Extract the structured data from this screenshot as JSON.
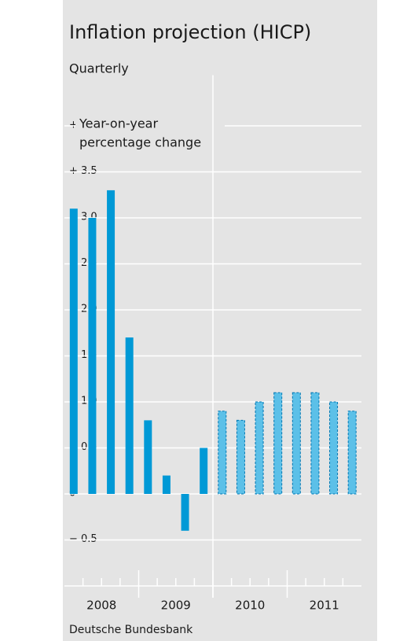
{
  "chart_data": {
    "type": "bar",
    "title": "Inflation projection (HICP)",
    "subtitle": "Quarterly",
    "annotation": [
      "Year-on-year",
      "percentage change"
    ],
    "source": "Deutsche Bundesbank",
    "categories": [
      null,
      null,
      null,
      null,
      null,
      null,
      null,
      null,
      null,
      null,
      null,
      null,
      null,
      null,
      null,
      null
    ],
    "year_groups": [
      "2008",
      "2009",
      "2010",
      "2011"
    ],
    "series": [
      {
        "color": "#0099d6",
        "style": "solid",
        "values": [
          3.1,
          3.0,
          3.3,
          1.7,
          0.8,
          0.2,
          -0.4,
          0.5,
          null,
          null,
          null,
          null,
          null,
          null,
          null,
          null
        ]
      },
      {
        "color": "#5cc0e8",
        "style": "dashed",
        "values": [
          null,
          null,
          null,
          null,
          null,
          null,
          null,
          null,
          0.9,
          0.8,
          1.0,
          1.1,
          1.1,
          1.1,
          1.0,
          0.9
        ]
      }
    ],
    "ylim": [
      -1.0,
      4.5
    ],
    "yticks": [
      {
        "value": -0.5,
        "label": "− 0.5"
      },
      0,
      {
        "value": 0.5,
        "label": "+ 0.5"
      },
      {
        "value": 1.0,
        "label": "+ 1.0"
      },
      {
        "value": 1.5,
        "label": "+ 1.5"
      },
      {
        "value": 2.0,
        "label": "+ 2.0"
      },
      {
        "value": 2.5,
        "label": "+ 2.5"
      },
      {
        "value": 3.0,
        "label": "+ 3.0"
      },
      {
        "value": 3.5,
        "label": "+ 3.5"
      },
      {
        "value": 4.0,
        "label": "+ 4.0"
      }
    ],
    "grid": true
  }
}
